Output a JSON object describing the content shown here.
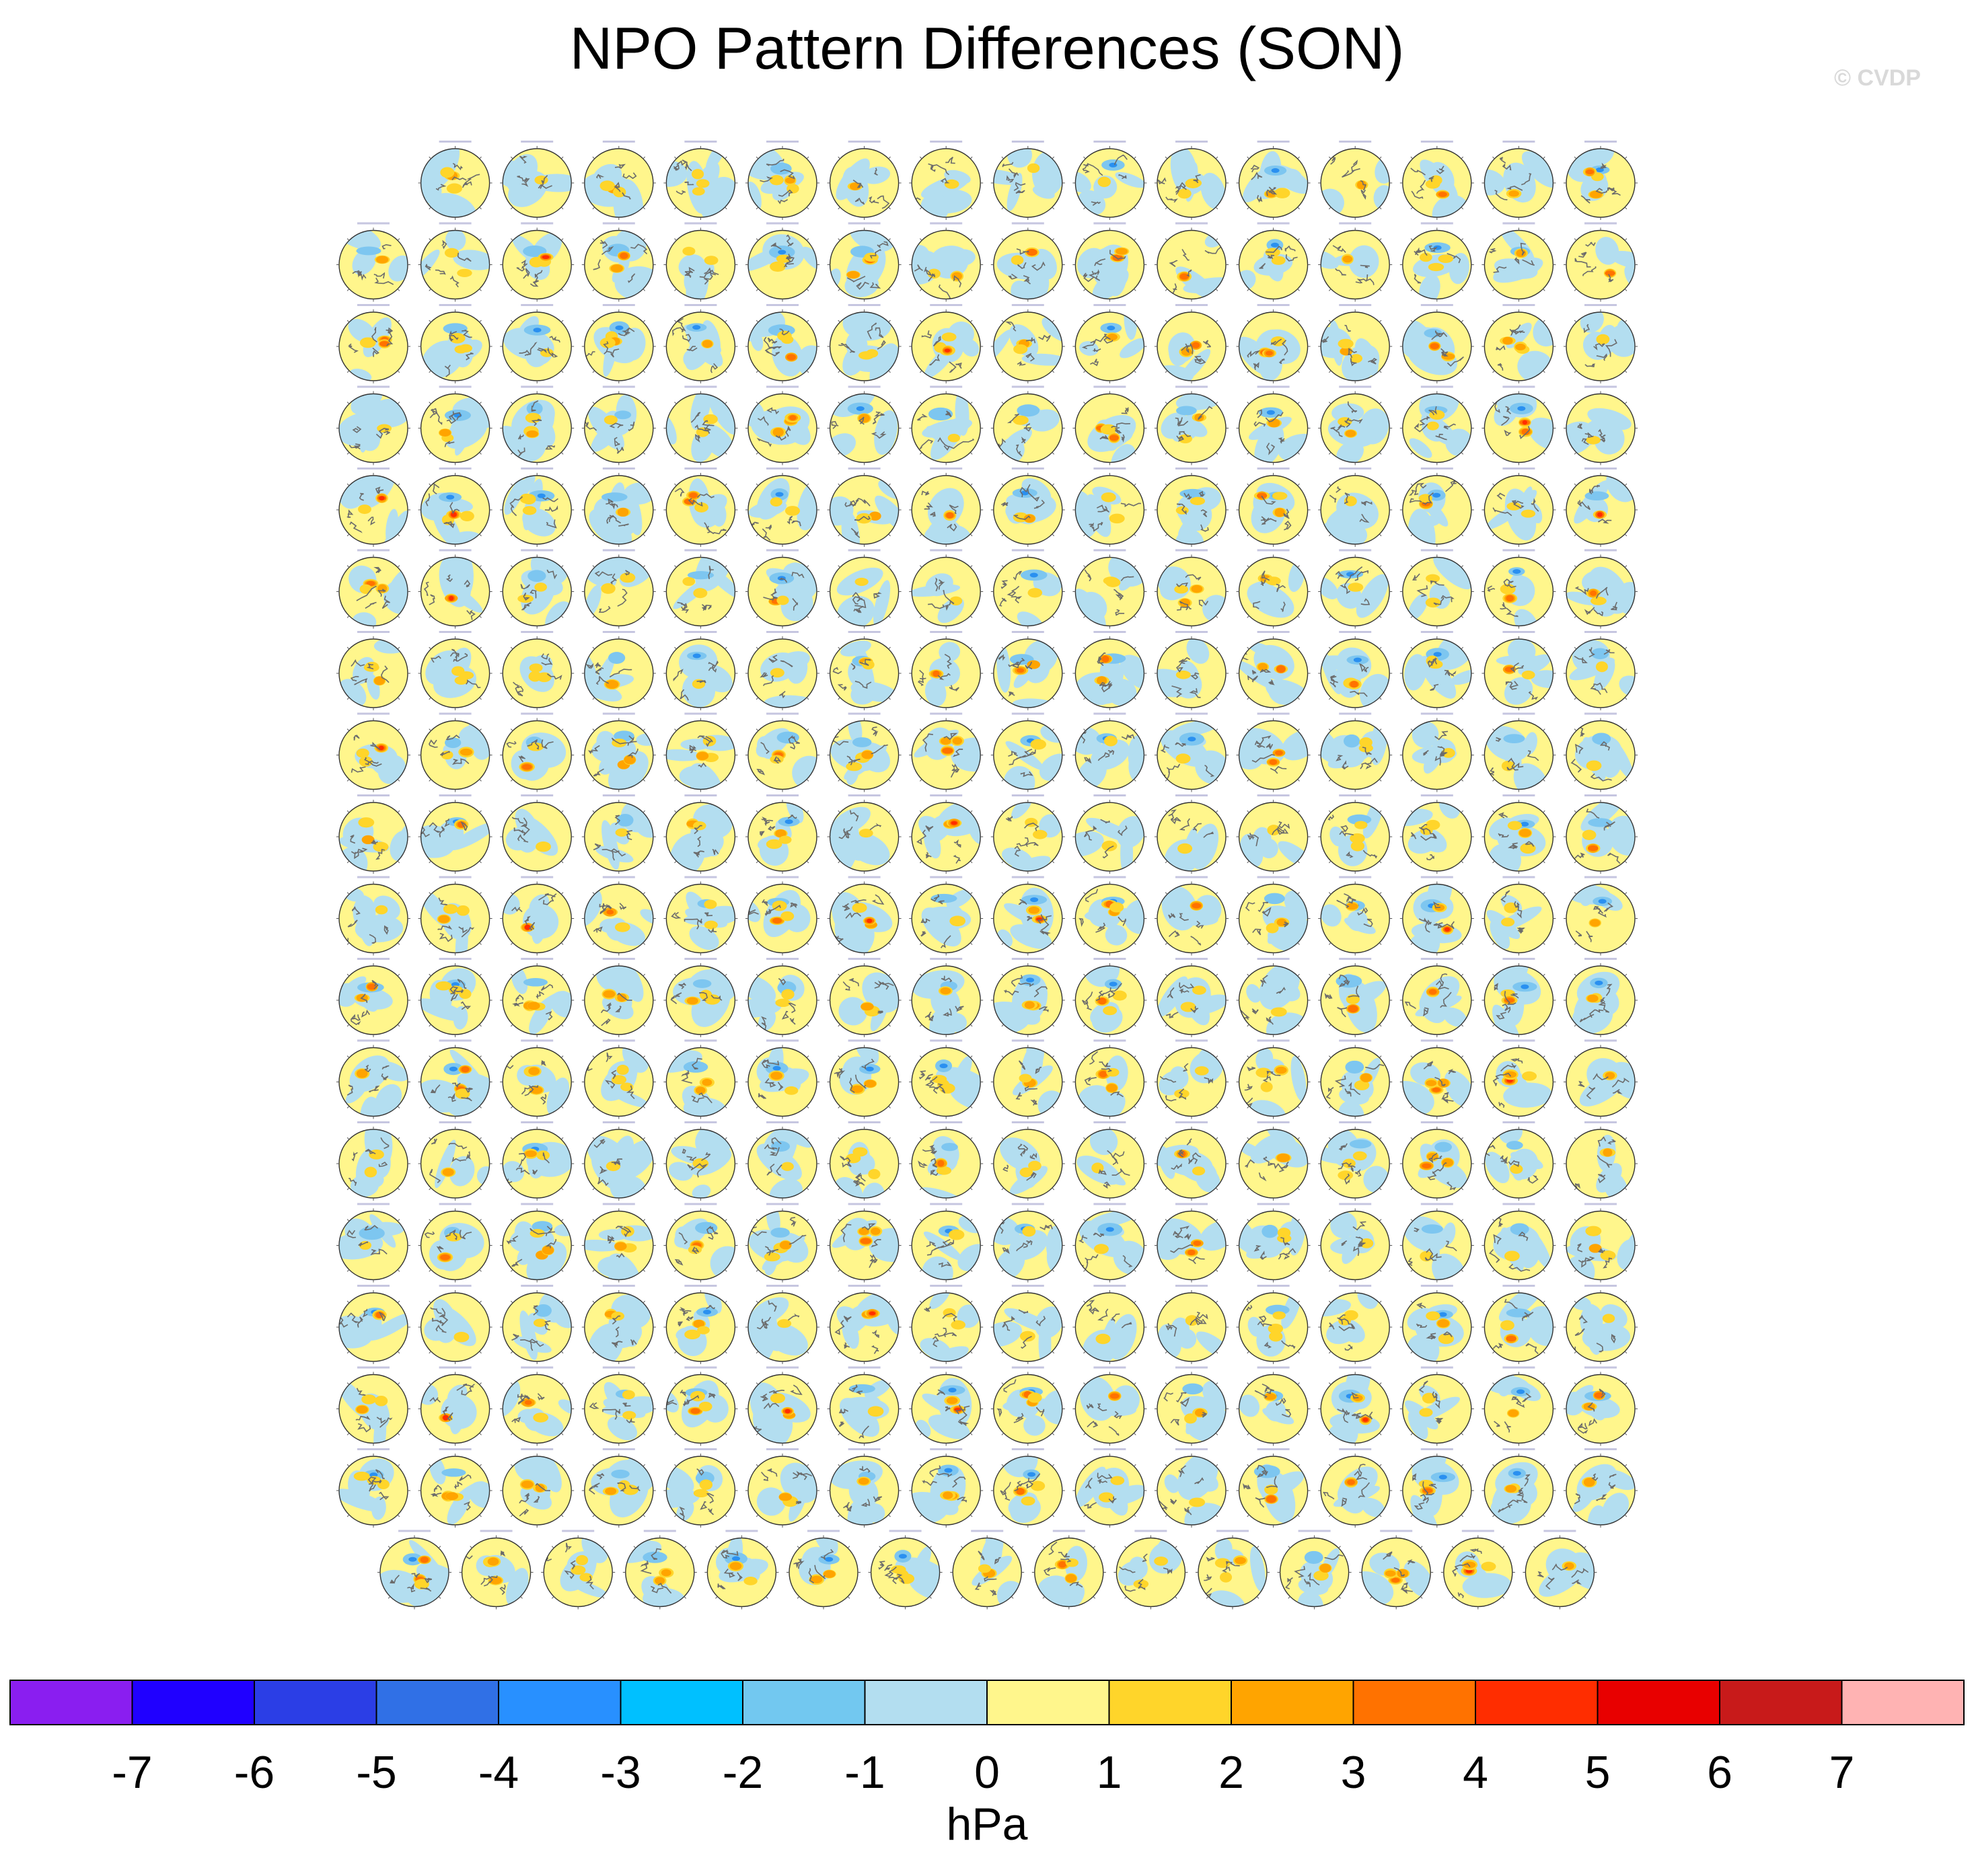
{
  "chart_data": {
    "type": "heatmap",
    "title": "NPO Pattern Differences (SON)",
    "watermark": "© CVDP",
    "panel_layout": {
      "row_counts": [
        15,
        16,
        16,
        16,
        16,
        16,
        16,
        16,
        16,
        16,
        16,
        16,
        16,
        16,
        16,
        16,
        16,
        15
      ],
      "first_row_offset_columns": 1,
      "total_panels": 286
    },
    "panel_style": {
      "background": "#fff68c",
      "negative_patch": "#b3def0",
      "coast": "#6b6b6b",
      "strong_positive": [
        "#ffd52a",
        "#ffa400",
        "#ff7200",
        "#ff2d00"
      ],
      "strong_negative": [
        "#7dc6f0",
        "#2a90f0"
      ]
    },
    "colorbar": {
      "label": "hPa",
      "tick_labels": [
        "-7",
        "-6",
        "-5",
        "-4",
        "-3",
        "-2",
        "-1",
        "0",
        "1",
        "2",
        "3",
        "4",
        "5",
        "6",
        "7"
      ],
      "levels": [
        -7,
        -6,
        -5,
        -4,
        -3,
        -2,
        -1,
        0,
        1,
        2,
        3,
        4,
        5,
        6,
        7
      ],
      "colors": [
        "#8a1ef0",
        "#2000ff",
        "#2b3ee6",
        "#3070e6",
        "#2890ff",
        "#00c0ff",
        "#72c8f0",
        "#b3def0",
        "#fff68c",
        "#ffd52a",
        "#ffa400",
        "#ff7200",
        "#ff2d00",
        "#e80000",
        "#c81a1a",
        "#ffb3b3"
      ]
    }
  }
}
